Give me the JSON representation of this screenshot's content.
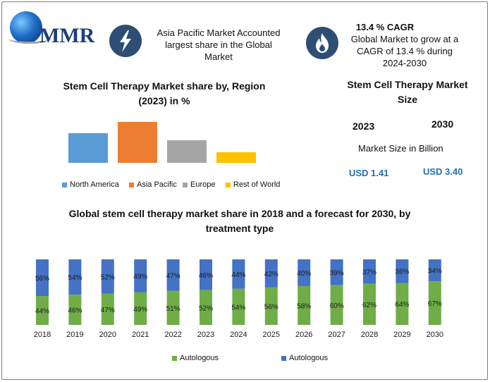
{
  "brand": {
    "logo_text": "MMR"
  },
  "header": {
    "highlight1": "Asia Pacific Market Accounted largest share in the Global Market",
    "cagr_title": "13.4 % CAGR",
    "cagr_text": "Global Market to grow at a CAGR of 13.4 % during 2024-2030",
    "icons": [
      "lightning-icon",
      "flame-icon"
    ]
  },
  "market_size": {
    "title": "Stem Cell Therapy Market Size",
    "year1": "2023",
    "year2": "2030",
    "subtitle": "Market Size in Billion",
    "value1": "USD 1.41",
    "value2": "USD 3.40"
  },
  "colors": {
    "north_america": "#5b9bd5",
    "asia_pacific": "#ed7d31",
    "europe": "#a5a5a5",
    "rest_of_world": "#ffc000",
    "autologous_green": "#70ad47",
    "autologous_blue": "#4472c4",
    "icon_circle": "#2e4e73",
    "usd_text": "#1f6fb5"
  },
  "chart_data": [
    {
      "type": "bar",
      "title": "Stem Cell Therapy Market share by, Region (2023) in %",
      "categories": [
        "North America",
        "Asia Pacific",
        "Europe",
        "Rest of World"
      ],
      "values": [
        42,
        58,
        32,
        15
      ],
      "ylim": [
        0,
        60
      ],
      "legend_position": "bottom",
      "grid": false,
      "legend": [
        "North America",
        "Asia Pacific",
        "Europe",
        "Rest of World"
      ]
    },
    {
      "type": "bar",
      "stacked": true,
      "title": "Global stem cell therapy market share in 2018 and a forecast for 2030, by treatment type",
      "categories": [
        "2018",
        "2019",
        "2020",
        "2021",
        "2022",
        "2023",
        "2024",
        "2025",
        "2026",
        "2027",
        "2028",
        "2029",
        "2030"
      ],
      "series": [
        {
          "name": "Autologous",
          "values": [
            44,
            46,
            47,
            49,
            51,
            52,
            54,
            56,
            58,
            60,
            62,
            64,
            67
          ],
          "labels": [
            "44%",
            "46%",
            "47%",
            "49%",
            "51%",
            "52%",
            "54%",
            "56%",
            "58%",
            "60%",
            "62%",
            "64%",
            "67%"
          ]
        },
        {
          "name": "Autologous",
          "values": [
            56,
            54,
            52,
            49,
            47,
            46,
            44,
            42,
            40,
            39,
            37,
            36,
            34
          ],
          "labels": [
            "56%",
            "54%",
            "52%",
            "49%",
            "47%",
            "46%",
            "44%",
            "42%",
            "40%",
            "39%",
            "37%",
            "36%",
            "34%"
          ]
        }
      ],
      "legend_position": "bottom",
      "grid": false
    }
  ]
}
